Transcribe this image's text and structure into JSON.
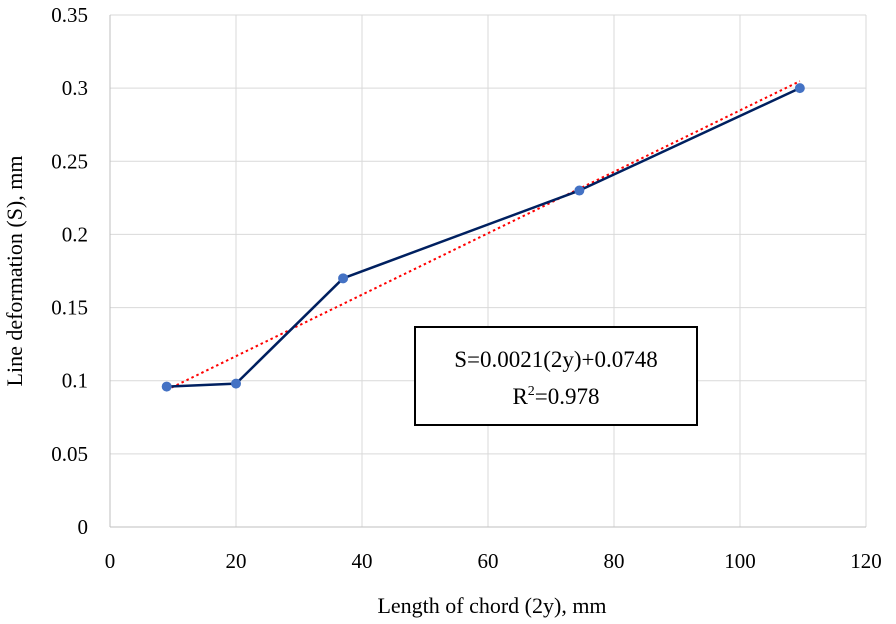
{
  "chart_data": {
    "type": "scatter",
    "xlabel": "Length of chord (2y), mm",
    "ylabel": "Line deformation (S), mm",
    "xlim": [
      0,
      120
    ],
    "ylim": [
      0,
      0.35
    ],
    "x_ticks": [
      "0",
      "20",
      "40",
      "60",
      "80",
      "100",
      "120"
    ],
    "y_ticks": [
      "0",
      "0.05",
      "0.1",
      "0.15",
      "0.2",
      "0.25",
      "0.3",
      "0.35"
    ],
    "grid": true,
    "series": [
      {
        "points": [
          {
            "x": 9,
            "y": 0.096
          },
          {
            "x": 20,
            "y": 0.098
          },
          {
            "x": 37,
            "y": 0.17
          },
          {
            "x": 74.5,
            "y": 0.23
          },
          {
            "x": 109.5,
            "y": 0.3
          }
        ],
        "color": "#002060",
        "marker_color": "#4472c4"
      }
    ],
    "trendline": {
      "type": "linear",
      "slope": 0.0021,
      "intercept": 0.0748,
      "x_range": [
        9,
        109.5
      ],
      "color": "#ff0000",
      "style": "dotted"
    },
    "annotation": {
      "line1": "S=0.0021(2y)+0.0748",
      "line2_prefix": "R",
      "line2_sup": "2",
      "line2_suffix": "=0.978"
    }
  }
}
